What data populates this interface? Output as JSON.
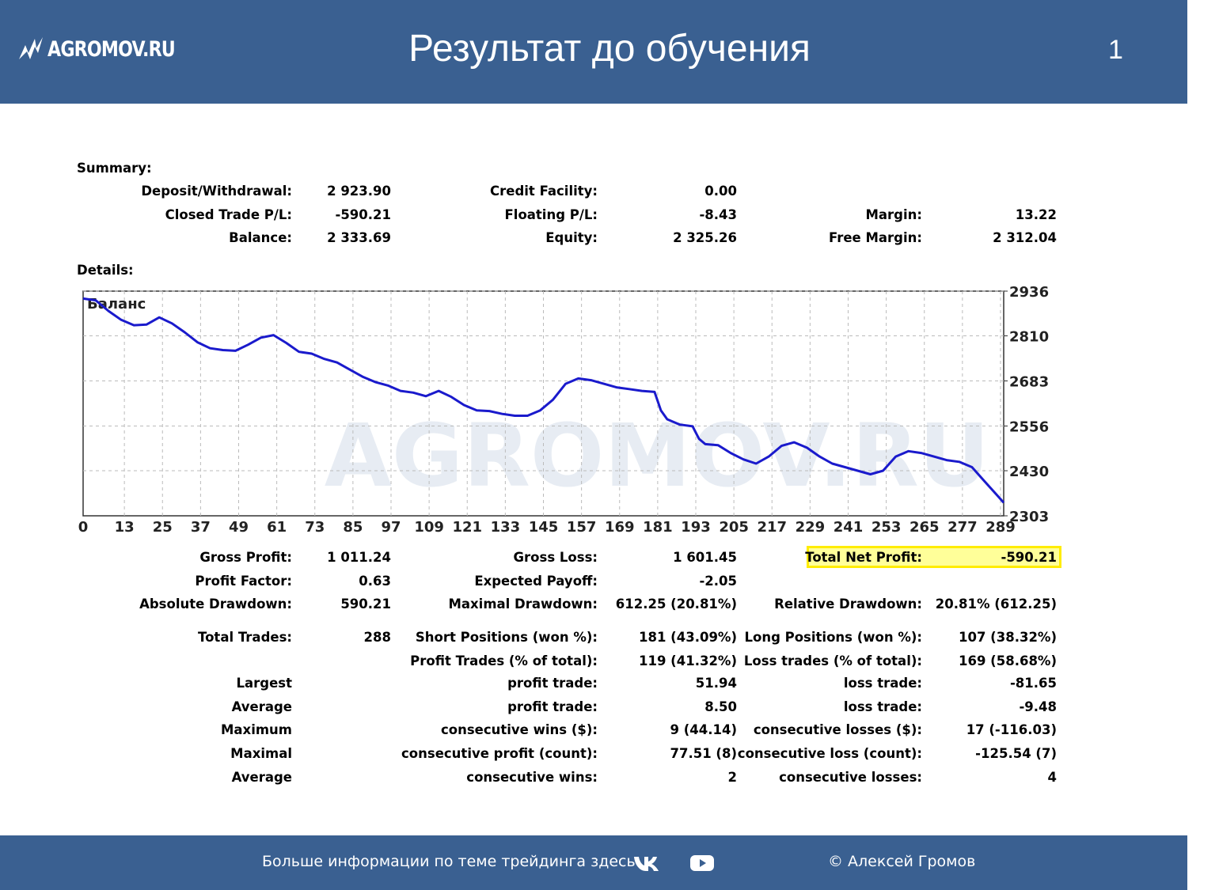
{
  "header": {
    "logo_text": "AGROMOV.RU",
    "title": "Результат до обучения",
    "slide_number": "1"
  },
  "summary": {
    "label": "Summary:",
    "rows": [
      {
        "l1": "Deposit/Withdrawal:",
        "v1": "2 923.90",
        "l2": "Credit Facility:",
        "v2": "0.00",
        "l3": "",
        "v3": ""
      },
      {
        "l1": "Closed Trade P/L:",
        "v1": "-590.21",
        "l2": "Floating P/L:",
        "v2": "-8.43",
        "l3": "Margin:",
        "v3": "13.22"
      },
      {
        "l1": "Balance:",
        "v1": "2 333.69",
        "l2": "Equity:",
        "v2": "2 325.26",
        "l3": "Free Margin:",
        "v3": "2 312.04"
      }
    ]
  },
  "details_label": "Details:",
  "chart_data": {
    "type": "line",
    "title": "Баланс",
    "x_ticks": [
      0,
      13,
      25,
      37,
      49,
      61,
      73,
      85,
      97,
      109,
      121,
      133,
      145,
      157,
      169,
      181,
      193,
      205,
      217,
      229,
      241,
      253,
      265,
      277,
      289
    ],
    "y_ticks": [
      2936,
      2810,
      2683,
      2556,
      2430,
      2303
    ],
    "xlim": [
      0,
      290
    ],
    "ylim": [
      2303,
      2936
    ],
    "grid": true,
    "series": [
      {
        "color": "#1a1acc",
        "x": [
          0,
          4,
          8,
          12,
          16,
          20,
          24,
          28,
          32,
          36,
          40,
          44,
          48,
          52,
          56,
          60,
          64,
          68,
          72,
          76,
          80,
          84,
          88,
          92,
          96,
          100,
          104,
          108,
          112,
          116,
          120,
          124,
          128,
          132,
          136,
          140,
          144,
          148,
          152,
          156,
          160,
          164,
          168,
          172,
          176,
          180,
          182,
          184,
          188,
          192,
          194,
          196,
          200,
          204,
          208,
          212,
          216,
          220,
          224,
          228,
          232,
          236,
          240,
          244,
          248,
          252,
          256,
          260,
          264,
          268,
          272,
          276,
          280,
          284,
          288,
          290
        ],
        "y": [
          2915,
          2910,
          2880,
          2855,
          2840,
          2842,
          2862,
          2845,
          2820,
          2792,
          2775,
          2770,
          2768,
          2785,
          2805,
          2812,
          2790,
          2765,
          2760,
          2745,
          2735,
          2715,
          2695,
          2680,
          2670,
          2655,
          2650,
          2640,
          2655,
          2638,
          2615,
          2600,
          2598,
          2590,
          2585,
          2585,
          2600,
          2630,
          2675,
          2690,
          2685,
          2675,
          2665,
          2660,
          2655,
          2652,
          2600,
          2575,
          2560,
          2555,
          2520,
          2505,
          2502,
          2480,
          2462,
          2450,
          2470,
          2500,
          2510,
          2495,
          2470,
          2450,
          2440,
          2430,
          2420,
          2430,
          2470,
          2485,
          2480,
          2470,
          2460,
          2455,
          2440,
          2400,
          2360,
          2340
        ]
      }
    ]
  },
  "details": {
    "rows": [
      {
        "l1": "Gross Profit:",
        "v1": "1 011.24",
        "l2": "Gross Loss:",
        "v2": "1 601.45",
        "l3": "Total Net Profit:",
        "v3": "-590.21"
      },
      {
        "l1": "Profit Factor:",
        "v1": "0.63",
        "l2": "Expected Payoff:",
        "v2": "-2.05",
        "l3": "",
        "v3": ""
      },
      {
        "l1": "Absolute Drawdown:",
        "v1": "590.21",
        "l2": "Maximal Drawdown:",
        "v2": "612.25 (20.81%)",
        "l3": "Relative Drawdown:",
        "v3": "20.81% (612.25)"
      },
      {
        "l1": "Total Trades:",
        "v1": "288",
        "l2": "Short Positions (won %):",
        "v2": "181 (43.09%)",
        "l3": "Long Positions (won %):",
        "v3": "107 (38.32%)"
      },
      {
        "l1": "",
        "v1": "",
        "l2": "Profit Trades (% of total):",
        "v2": "119 (41.32%)",
        "l3": "Loss trades (% of total):",
        "v3": "169 (58.68%)"
      },
      {
        "l1": "Largest",
        "v1": "",
        "l2": "profit trade:",
        "v2": "51.94",
        "l3": "loss trade:",
        "v3": "-81.65"
      },
      {
        "l1": "Average",
        "v1": "",
        "l2": "profit trade:",
        "v2": "8.50",
        "l3": "loss trade:",
        "v3": "-9.48"
      },
      {
        "l1": "Maximum",
        "v1": "",
        "l2": "consecutive wins ($):",
        "v2": "9 (44.14)",
        "l3": "consecutive losses ($):",
        "v3": "17 (-116.03)"
      },
      {
        "l1": "Maximal",
        "v1": "",
        "l2": "consecutive profit (count):",
        "v2": "77.51 (8)",
        "l3": "consecutive loss (count):",
        "v3": "-125.54 (7)"
      },
      {
        "l1": "Average",
        "v1": "",
        "l2": "consecutive wins:",
        "v2": "2",
        "l3": "consecutive losses:",
        "v3": "4"
      }
    ]
  },
  "footer": {
    "info_text": "Больше информации по теме трейдинга здесь",
    "copyright": "© Алексей Громов",
    "vk_icon": "vk-icon",
    "youtube_icon": "youtube-icon"
  }
}
